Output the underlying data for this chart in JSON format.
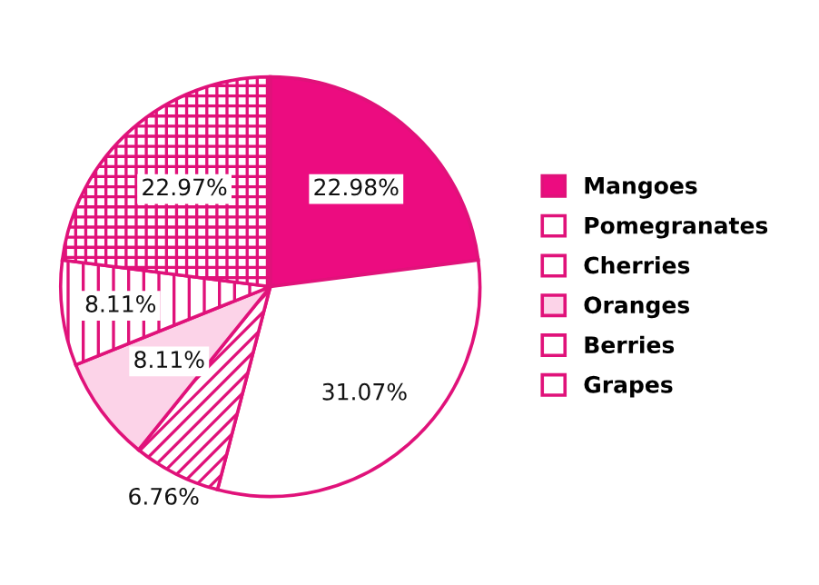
{
  "chart_data": {
    "type": "pie",
    "categories": [
      "Mangoes",
      "Pomegranates",
      "Cherries",
      "Oranges",
      "Berries",
      "Grapes"
    ],
    "values": [
      22.98,
      31.07,
      6.76,
      8.11,
      8.11,
      22.97
    ],
    "colors": [
      "#ec0c80",
      "#ffffff",
      "#ffffff",
      "#fcd3e8",
      "#ffffff",
      "#ffffff"
    ],
    "value_labels": [
      "22.98%",
      "31.07%",
      "6.76%",
      "8.11%",
      "8.11%",
      "22.97%"
    ],
    "legend": "right"
  }
}
